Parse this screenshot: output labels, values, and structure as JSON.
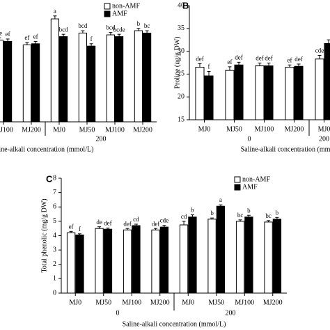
{
  "chart_data": [
    {
      "type": "bar",
      "legend": true,
      "ylim": [
        0,
        10
      ],
      "xlabel": "Saline-alkali concentration (mmol/L)",
      "categories": [
        "MJ100",
        "MJ200",
        "MJ0",
        "MJ50",
        "MJ100",
        "MJ200"
      ],
      "group_labels": [
        null,
        null,
        "200",
        null,
        null,
        null
      ],
      "series": [
        {
          "name": "non-AMF",
          "color": "#ffffff",
          "values": [
            6.9,
            6.5,
            8.7,
            7.5,
            7.35,
            7.7
          ],
          "errors": [
            0.2,
            0.2,
            0.25,
            0.2,
            0.2,
            0.2
          ],
          "letters": [
            "de",
            "ef",
            "a",
            "bcd",
            "bcd",
            "b"
          ]
        },
        {
          "name": "AMF",
          "color": "#000000",
          "values": [
            6.8,
            6.6,
            7.2,
            6.4,
            7.2,
            7.5
          ],
          "errors": [
            0.2,
            0.2,
            0.2,
            0.2,
            0.2,
            0.2
          ],
          "letters": [
            "ef",
            "ef",
            "bcd",
            "f",
            "bcde",
            "bc"
          ]
        }
      ]
    },
    {
      "type": "bar",
      "panel": "B",
      "legend": false,
      "ylabel": "Proline (ug/g DW)",
      "xlabel": "Saline-alkali concentration (mmol/L)",
      "ylim": [
        15,
        40
      ],
      "yticks": [
        15,
        20,
        25,
        30,
        35,
        40
      ],
      "categories": [
        "MJ0",
        "MJ50",
        "MJ100",
        "MJ200",
        "MJ0"
      ],
      "group_labels": [
        "0",
        null,
        null,
        null,
        "200"
      ],
      "series": [
        {
          "name": "non-AMF",
          "color": "#ffffff",
          "values": [
            26.5,
            25.8,
            26.8,
            26.5,
            28.3
          ],
          "errors": [
            0.8,
            0.8,
            0.6,
            0.5,
            0.8
          ],
          "letters": [
            "def",
            "ef",
            "def",
            "ef",
            "cde"
          ]
        },
        {
          "name": "AMF",
          "color": "#000000",
          "values": [
            24.6,
            27,
            26.8,
            26.7,
            31.7
          ],
          "errors": [
            1.0,
            0.6,
            0.6,
            0.5,
            0.8
          ],
          "letters": [
            "f",
            "def",
            "def",
            "def",
            null
          ]
        }
      ]
    },
    {
      "type": "bar",
      "panel": "C",
      "legend": true,
      "ylabel": "Total phenolic (mg/g DW)",
      "xlabel": "Saline-alkali concentration (mmol/L)",
      "ylim": [
        0,
        8
      ],
      "yticks": [
        0,
        1,
        2,
        3,
        4,
        5,
        6,
        7,
        8
      ],
      "categories": [
        "MJ0",
        "MJ50",
        "MJ100",
        "MJ200",
        "MJ0",
        "MJ50",
        "MJ100",
        "MJ200"
      ],
      "group_labels": [
        "0",
        null,
        null,
        null,
        "200",
        null,
        null,
        null
      ],
      "series": [
        {
          "name": "non-AMF",
          "color": "#ffffff",
          "values": [
            4.2,
            4.5,
            4.4,
            4.4,
            4.75,
            5.15,
            5.0,
            4.95
          ],
          "errors": [
            0.1,
            0.12,
            0.1,
            0.1,
            0.25,
            0.08,
            0.1,
            0.1
          ],
          "letters": [
            "ef",
            "de",
            "def",
            "def",
            "cd",
            "b",
            "bc",
            "bc"
          ]
        },
        {
          "name": "AMF",
          "color": "#000000",
          "values": [
            4.05,
            4.45,
            4.7,
            4.6,
            5.3,
            6.05,
            5.3,
            5.15
          ],
          "errors": [
            0.08,
            0.08,
            0.1,
            0.12,
            0.15,
            0.1,
            0.12,
            0.12
          ],
          "letters": [
            "f",
            "def",
            "cd",
            "cde",
            "b",
            "a",
            "b",
            "b"
          ]
        }
      ]
    }
  ]
}
